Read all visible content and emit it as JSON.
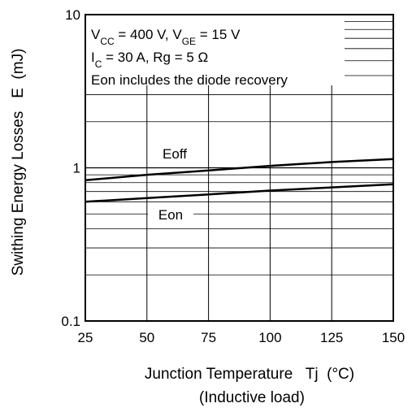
{
  "chart_data": {
    "type": "line",
    "xlabel": "Junction Temperature   Tj  (°C)",
    "xlabel_sub": "(Inductive load)",
    "ylabel": "Swithing Energy Losses   E  (mJ)",
    "xlim": [
      25,
      150
    ],
    "ylim": [
      0.1,
      10
    ],
    "yscale": "log",
    "grid": true,
    "x_ticks": [
      25,
      50,
      75,
      100,
      125,
      150
    ],
    "x_tick_labels": [
      "25",
      "50",
      "75",
      "100",
      "125",
      "150"
    ],
    "y_ticks": [
      0.1,
      1,
      10
    ],
    "y_tick_labels": [
      "0.1",
      "1",
      "10"
    ],
    "annotations": [
      {
        "parts": [
          {
            "t": "V"
          },
          {
            "t": "CC",
            "sub": true
          },
          {
            "t": " = 400 V, V"
          },
          {
            "t": "GE",
            "sub": true
          },
          {
            "t": " = 15 V"
          }
        ]
      },
      {
        "parts": [
          {
            "t": "I"
          },
          {
            "t": "C",
            "sub": true
          },
          {
            "t": " = 30 A, Rg = 5 Ω"
          }
        ]
      },
      {
        "parts": [
          {
            "t": "Eon includes the diode recovery"
          }
        ]
      }
    ],
    "series": [
      {
        "name": "Eoff",
        "x": [
          25,
          50,
          75,
          100,
          125,
          150
        ],
        "y": [
          0.83,
          0.9,
          0.96,
          1.03,
          1.09,
          1.14
        ]
      },
      {
        "name": "Eon",
        "x": [
          25,
          50,
          75,
          100,
          125,
          150
        ],
        "y": [
          0.6,
          0.635,
          0.67,
          0.71,
          0.745,
          0.78
        ]
      }
    ]
  }
}
